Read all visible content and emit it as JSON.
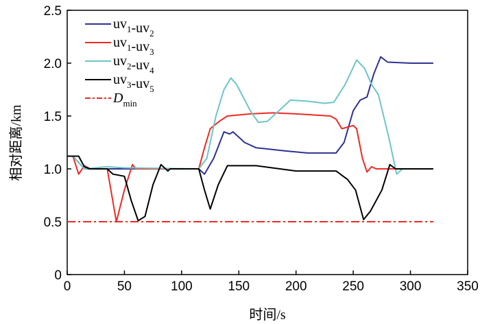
{
  "chart_data": {
    "type": "line",
    "title": "",
    "xlabel": "时间/s",
    "ylabel": "相对距离/km",
    "xlim": [
      0,
      350
    ],
    "ylim": [
      0,
      2.5
    ],
    "xticks": [
      "0",
      "50",
      "100",
      "150",
      "200",
      "250",
      "300",
      "350"
    ],
    "yticks": [
      "0",
      "0.5",
      "1.0",
      "1.5",
      "2.0",
      "2.5"
    ],
    "grid": false,
    "legend_placement": "top-left",
    "series": [
      {
        "name": "uv1-uv2",
        "base": "uv",
        "s1": "1",
        "mid": "-uv",
        "s2": "2",
        "color": "#2e3192",
        "dash": "",
        "x": [
          0,
          5,
          15,
          115,
          120,
          128,
          137,
          142,
          145,
          155,
          165,
          190,
          210,
          235,
          242,
          250,
          256,
          262,
          268,
          274,
          280,
          300,
          320
        ],
        "y": [
          1.12,
          1.12,
          1.0,
          1.0,
          0.95,
          1.1,
          1.35,
          1.33,
          1.35,
          1.25,
          1.2,
          1.17,
          1.15,
          1.15,
          1.25,
          1.55,
          1.65,
          1.68,
          1.9,
          2.06,
          2.01,
          2.0,
          2.0
        ]
      },
      {
        "name": "uv1-uv3",
        "base": "uv",
        "s1": "1",
        "mid": "-uv",
        "s2": "3",
        "color": "#ee2a24",
        "dash": "",
        "x": [
          0,
          5,
          10,
          15,
          20,
          35,
          43,
          50,
          57,
          60,
          115,
          120,
          125,
          133,
          140,
          160,
          180,
          200,
          230,
          235,
          240,
          250,
          253,
          258,
          262,
          266,
          270,
          320
        ],
        "y": [
          1.12,
          1.12,
          0.95,
          1.03,
          1.0,
          1.0,
          0.5,
          0.8,
          1.04,
          1.0,
          1.0,
          1.2,
          1.38,
          1.45,
          1.5,
          1.52,
          1.53,
          1.52,
          1.5,
          1.47,
          1.38,
          1.41,
          1.38,
          1.1,
          0.97,
          1.02,
          1.0,
          1.0
        ]
      },
      {
        "name": "uv2-uv4",
        "base": "uv",
        "s1": "2",
        "mid": "-uv",
        "s2": "4",
        "color": "#6cc5c6",
        "dash": "",
        "x": [
          0,
          5,
          15,
          35,
          50,
          115,
          122,
          130,
          137,
          143,
          148,
          160,
          167,
          175,
          185,
          195,
          210,
          225,
          233,
          243,
          253,
          260,
          266,
          272,
          281,
          288,
          293,
          320
        ],
        "y": [
          1.12,
          1.12,
          1.0,
          1.02,
          1.01,
          1.0,
          1.1,
          1.5,
          1.75,
          1.86,
          1.8,
          1.55,
          1.44,
          1.45,
          1.55,
          1.65,
          1.64,
          1.62,
          1.63,
          1.8,
          2.03,
          1.95,
          1.8,
          1.7,
          1.3,
          0.95,
          1.0,
          1.0
        ]
      },
      {
        "name": "uv3-uv5",
        "base": "uv",
        "s1": "3",
        "mid": "-uv",
        "s2": "5",
        "color": "#000000",
        "dash": "",
        "x": [
          0,
          10,
          15,
          20,
          35,
          40,
          50,
          56,
          62,
          68,
          75,
          82,
          88,
          90,
          115,
          120,
          125,
          132,
          140,
          165,
          200,
          235,
          245,
          252,
          259,
          265,
          275,
          282,
          287,
          320
        ],
        "y": [
          1.12,
          1.12,
          1.02,
          1.0,
          1.0,
          0.95,
          0.93,
          0.7,
          0.51,
          0.55,
          0.85,
          1.04,
          0.98,
          1.0,
          1.0,
          0.8,
          0.62,
          0.85,
          1.03,
          1.03,
          0.98,
          0.98,
          0.9,
          0.8,
          0.52,
          0.6,
          0.8,
          1.04,
          1.0,
          1.0
        ]
      },
      {
        "name": "Dmin",
        "base": "D",
        "s1": "",
        "mid": "",
        "s2": "min",
        "color": "#ee2a24",
        "dash": "12,4,3,4",
        "x": [
          0,
          320
        ],
        "y": [
          0.5,
          0.5
        ]
      }
    ]
  }
}
